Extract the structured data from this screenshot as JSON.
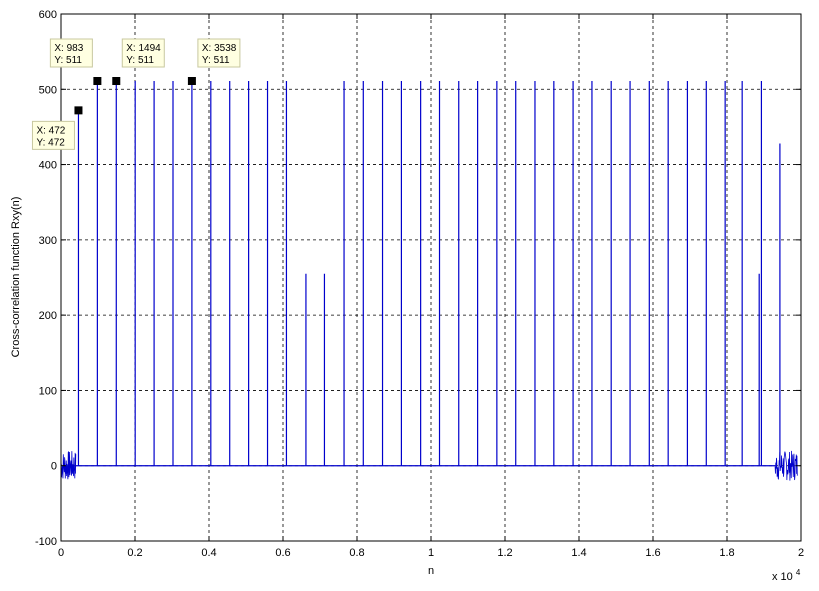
{
  "chart_data": {
    "type": "line",
    "title": "",
    "xlabel": "n",
    "ylabel": "Cross-correlation function Rxy(n)",
    "x_exponent_label": "x 10",
    "x_exponent_power": "4",
    "xlim": [
      0,
      20000
    ],
    "ylim": [
      -100,
      600
    ],
    "grid": true,
    "x_ticks": [
      {
        "value": 0,
        "label": "0"
      },
      {
        "value": 2000,
        "label": "0.2"
      },
      {
        "value": 4000,
        "label": "0.4"
      },
      {
        "value": 6000,
        "label": "0.6"
      },
      {
        "value": 8000,
        "label": "0.8"
      },
      {
        "value": 10000,
        "label": "1"
      },
      {
        "value": 12000,
        "label": "1.2"
      },
      {
        "value": 14000,
        "label": "1.4"
      },
      {
        "value": 16000,
        "label": "1.6"
      },
      {
        "value": 18000,
        "label": "1.8"
      },
      {
        "value": 20000,
        "label": "2"
      }
    ],
    "y_ticks": [
      {
        "value": -100,
        "label": "-100"
      },
      {
        "value": 0,
        "label": "0"
      },
      {
        "value": 100,
        "label": "100"
      },
      {
        "value": 200,
        "label": "200"
      },
      {
        "value": 300,
        "label": "300"
      },
      {
        "value": 400,
        "label": "400"
      },
      {
        "value": 500,
        "label": "500"
      },
      {
        "value": 600,
        "label": "600"
      }
    ],
    "line_color": "#0000cc",
    "series": [
      {
        "peaks": [
          {
            "x": 472,
            "y": 472
          },
          {
            "x": 983,
            "y": 511
          },
          {
            "x": 1494,
            "y": 511
          },
          {
            "x": 2005,
            "y": 511
          },
          {
            "x": 2516,
            "y": 511
          },
          {
            "x": 3027,
            "y": 511
          },
          {
            "x": 3538,
            "y": 511
          },
          {
            "x": 4049,
            "y": 511
          },
          {
            "x": 4560,
            "y": 511
          },
          {
            "x": 5071,
            "y": 511
          },
          {
            "x": 5582,
            "y": 511
          },
          {
            "x": 6093,
            "y": 511
          },
          {
            "x": 6620,
            "y": 255
          },
          {
            "x": 7120,
            "y": 255
          },
          {
            "x": 7650,
            "y": 511
          },
          {
            "x": 8170,
            "y": 511
          },
          {
            "x": 8690,
            "y": 511
          },
          {
            "x": 9200,
            "y": 511
          },
          {
            "x": 9720,
            "y": 511
          },
          {
            "x": 10230,
            "y": 511
          },
          {
            "x": 10750,
            "y": 511
          },
          {
            "x": 11260,
            "y": 511
          },
          {
            "x": 11780,
            "y": 511
          },
          {
            "x": 12290,
            "y": 511
          },
          {
            "x": 12810,
            "y": 511
          },
          {
            "x": 13320,
            "y": 511
          },
          {
            "x": 13840,
            "y": 511
          },
          {
            "x": 14350,
            "y": 511
          },
          {
            "x": 14870,
            "y": 511
          },
          {
            "x": 15380,
            "y": 511
          },
          {
            "x": 15900,
            "y": 511
          },
          {
            "x": 16410,
            "y": 511
          },
          {
            "x": 16930,
            "y": 511
          },
          {
            "x": 17440,
            "y": 511
          },
          {
            "x": 17950,
            "y": 511
          },
          {
            "x": 18410,
            "y": 511
          },
          {
            "x": 18870,
            "y": 255
          },
          {
            "x": 18930,
            "y": 511
          },
          {
            "x": 19430,
            "y": 428
          }
        ],
        "noise_regions": [
          {
            "x_start": 0,
            "x_end": 400,
            "amplitude": 20
          },
          {
            "x_start": 19300,
            "x_end": 19900,
            "amplitude": 20
          }
        ]
      }
    ],
    "data_tips": [
      {
        "x_text": "X: 472",
        "y_text": "Y: 472",
        "x": 472,
        "y": 472,
        "box_side": "below-left"
      },
      {
        "x_text": "X: 983",
        "y_text": "Y: 511",
        "x": 983,
        "y": 511,
        "box_side": "above-left"
      },
      {
        "x_text": "X: 1494",
        "y_text": "Y: 511",
        "x": 1494,
        "y": 511,
        "box_side": "above-right"
      },
      {
        "x_text": "X: 3538",
        "y_text": "Y: 511",
        "x": 3538,
        "y": 511,
        "box_side": "above-right"
      }
    ]
  }
}
